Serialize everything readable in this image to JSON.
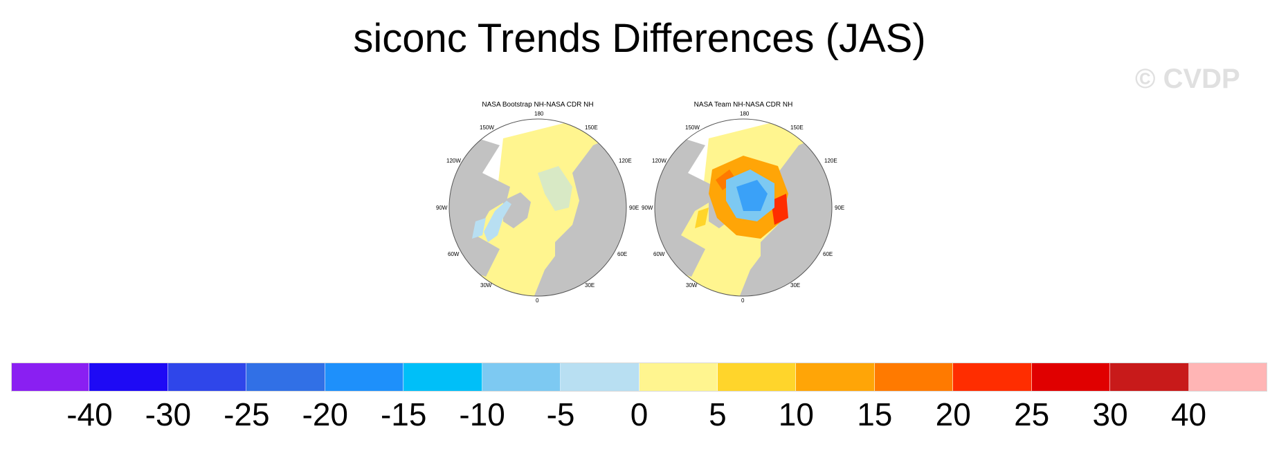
{
  "title": "siconc Trends Differences (JAS)",
  "watermark": "© CVDP",
  "panels": [
    {
      "title": "NASA Bootstrap NH-NASA CDR NH",
      "lon_labels": [
        "180",
        "150E",
        "120E",
        "90E",
        "60E",
        "30E",
        "0",
        "30W",
        "60W",
        "90W",
        "120W",
        "150W"
      ],
      "pattern": "small negative (light blue) differences along ice edge, positive (light yellow) elsewhere"
    },
    {
      "title": "NASA Team NH-NASA CDR NH",
      "lon_labels": [
        "180",
        "150E",
        "120E",
        "90E",
        "60E",
        "30E",
        "0",
        "30W",
        "60W",
        "90W",
        "120W",
        "150W"
      ],
      "pattern": "negative (blue) core in central Arctic surrounded by positive (orange/red) ring"
    }
  ],
  "colorbar": {
    "labels": [
      "-40",
      "-30",
      "-25",
      "-20",
      "-15",
      "-10",
      "-5",
      "0",
      "5",
      "10",
      "15",
      "20",
      "25",
      "30",
      "40"
    ],
    "colors": [
      "#8a1ff2",
      "#1e0af5",
      "#2f46ea",
      "#3170e6",
      "#1e90fb",
      "#00bff8",
      "#7dc9f2",
      "#b8dff2",
      "#fff58f",
      "#ffd52b",
      "#ffa507",
      "#ff7a00",
      "#ff2d00",
      "#e00000",
      "#c81a1a",
      "#ffb5b5"
    ]
  },
  "colors": {
    "land": "#c2c2c2",
    "background_water": "#ffffff",
    "positive_small": "#fff58f",
    "negative_small": "#b8dff2"
  }
}
